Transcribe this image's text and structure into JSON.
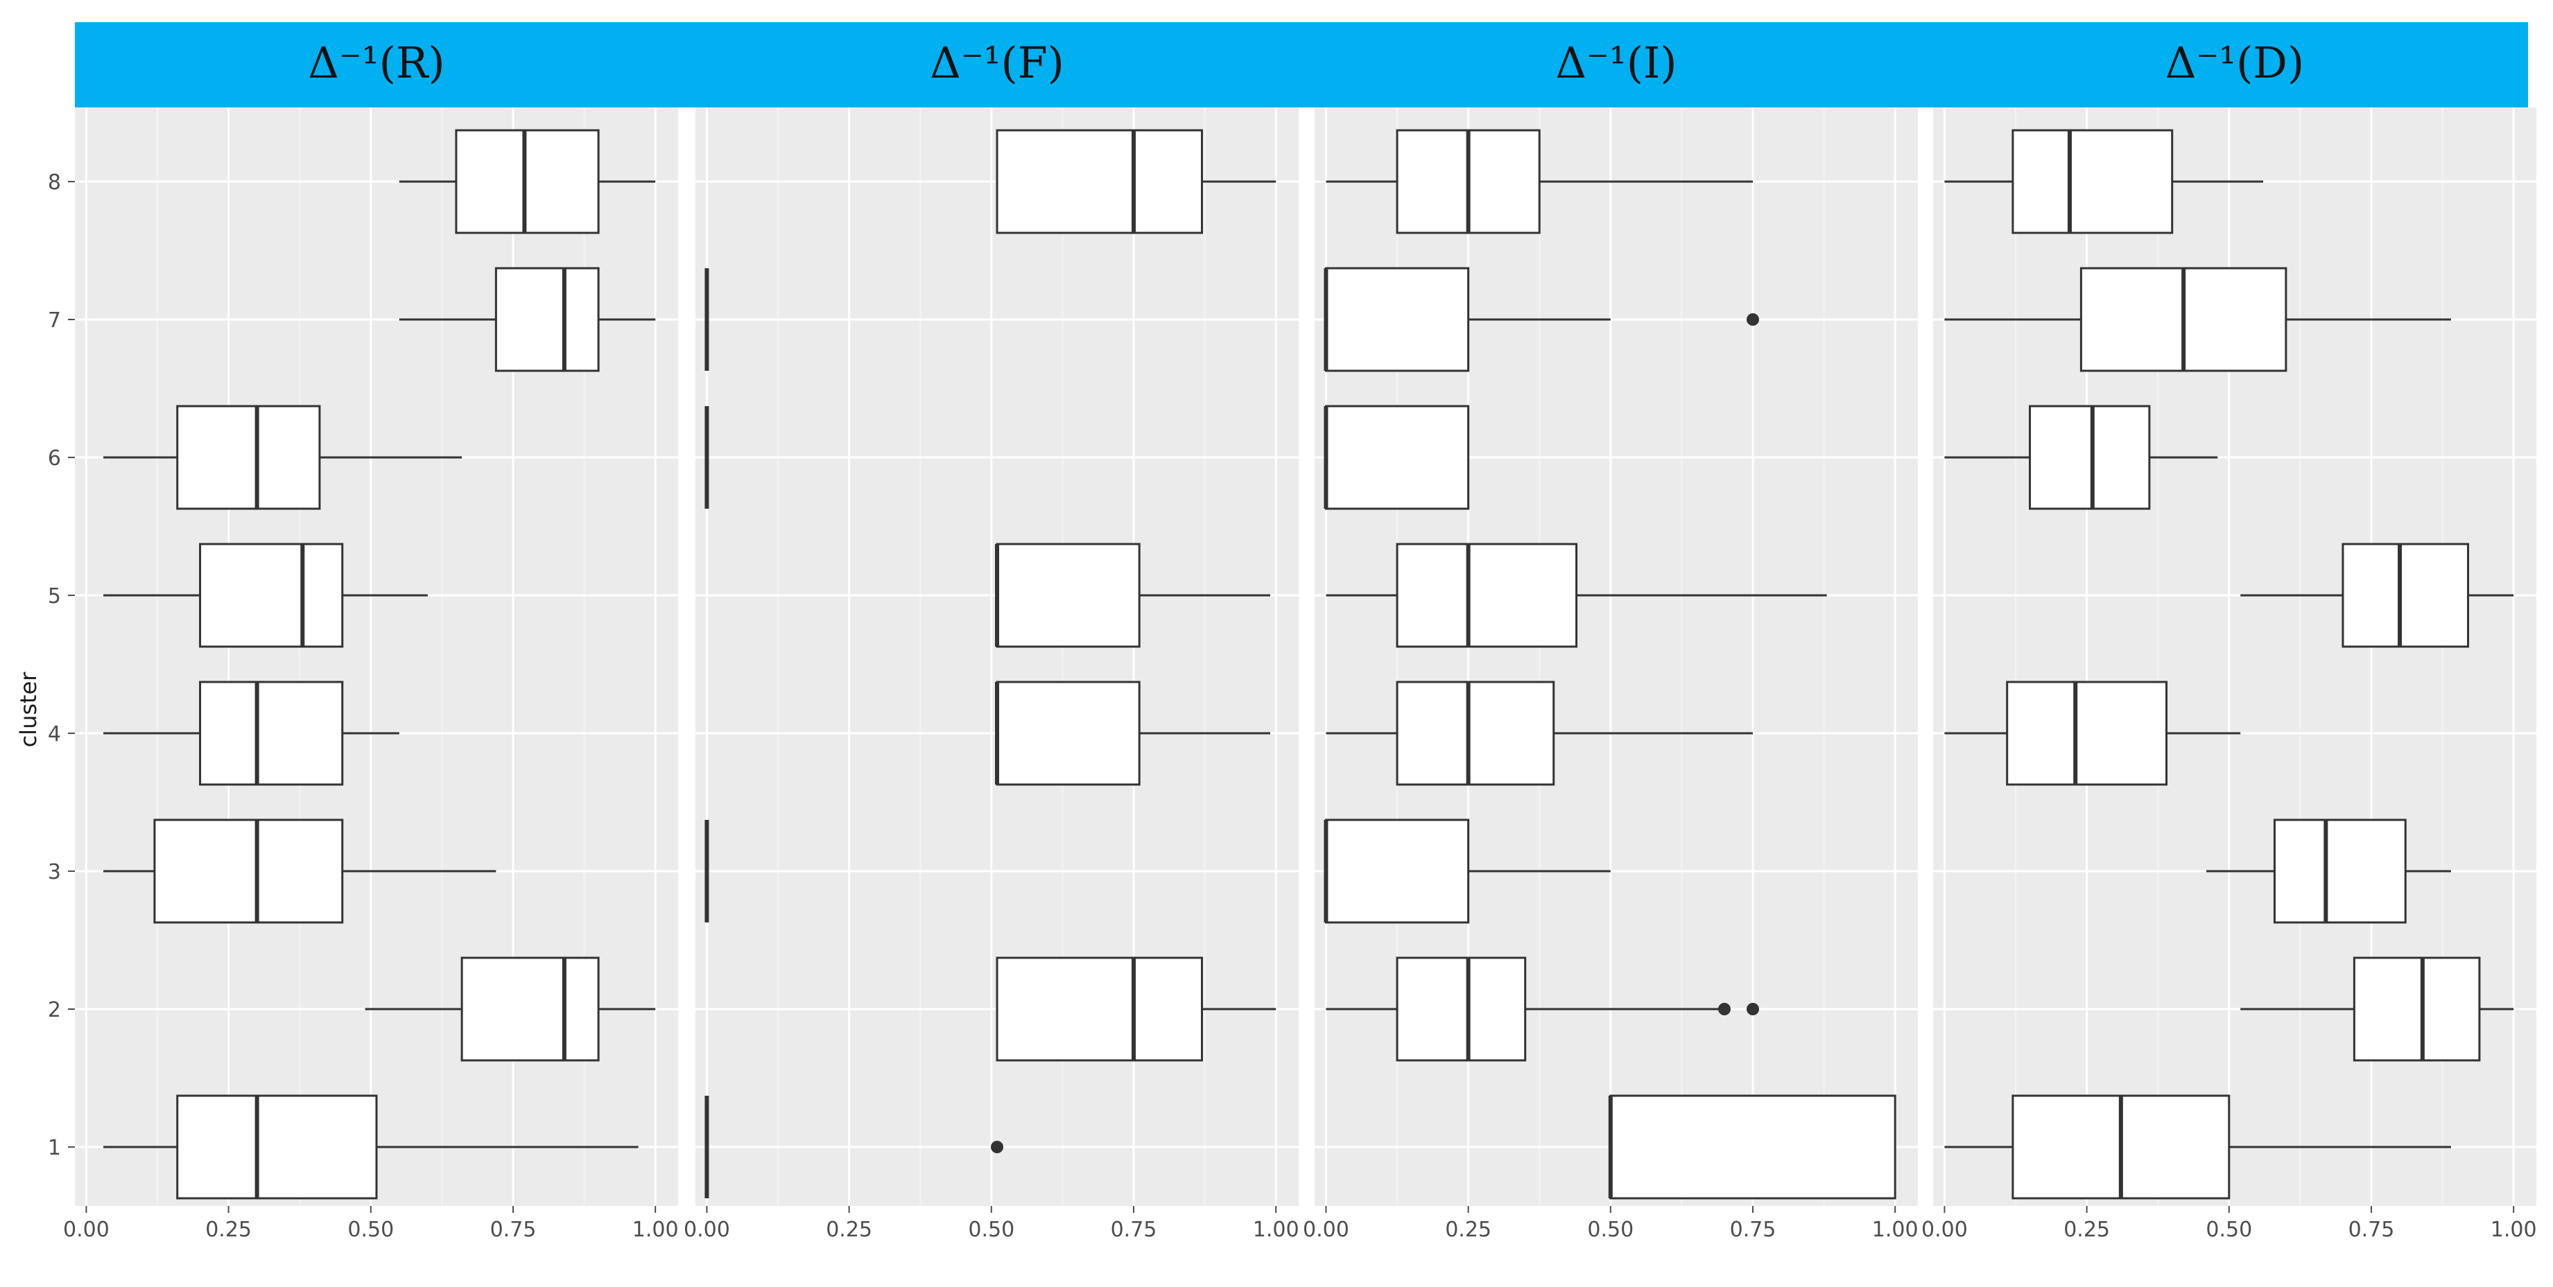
{
  "chart_data": {
    "type": "boxplot",
    "orientation": "horizontal",
    "ylabel": "cluster",
    "xlabel": "",
    "categories": [
      "1",
      "2",
      "3",
      "4",
      "5",
      "6",
      "7",
      "8"
    ],
    "xlim": [
      -0.02,
      1.04
    ],
    "xticks": [
      "0.00",
      "0.25",
      "0.50",
      "0.75",
      "1.00"
    ],
    "strip_color": "#00b0f0",
    "panel_background": "#ebebeb",
    "panels": [
      {
        "title": "Δ⁻¹(R)",
        "boxes": [
          {
            "cluster": "1",
            "min": 0.03,
            "q1": 0.16,
            "median": 0.3,
            "q3": 0.51,
            "max": 0.97,
            "outliers": []
          },
          {
            "cluster": "2",
            "min": 0.49,
            "q1": 0.66,
            "median": 0.84,
            "q3": 0.9,
            "max": 1.0,
            "outliers": []
          },
          {
            "cluster": "3",
            "min": 0.03,
            "q1": 0.12,
            "median": 0.3,
            "q3": 0.45,
            "max": 0.72,
            "outliers": []
          },
          {
            "cluster": "4",
            "min": 0.03,
            "q1": 0.2,
            "median": 0.3,
            "q3": 0.45,
            "max": 0.55,
            "outliers": []
          },
          {
            "cluster": "5",
            "min": 0.03,
            "q1": 0.2,
            "median": 0.38,
            "q3": 0.45,
            "max": 0.6,
            "outliers": []
          },
          {
            "cluster": "6",
            "min": 0.03,
            "q1": 0.16,
            "median": 0.3,
            "q3": 0.41,
            "max": 0.66,
            "outliers": []
          },
          {
            "cluster": "7",
            "min": 0.55,
            "q1": 0.72,
            "median": 0.84,
            "q3": 0.9,
            "max": 1.0,
            "outliers": []
          },
          {
            "cluster": "8",
            "min": 0.55,
            "q1": 0.65,
            "median": 0.77,
            "q3": 0.9,
            "max": 1.0,
            "outliers": []
          }
        ]
      },
      {
        "title": "Δ⁻¹(F)",
        "boxes": [
          {
            "cluster": "1",
            "min": 0.0,
            "q1": 0.0,
            "median": 0.0,
            "q3": 0.0,
            "max": 0.0,
            "outliers": [
              0.51
            ]
          },
          {
            "cluster": "2",
            "min": 0.51,
            "q1": 0.51,
            "median": 0.75,
            "q3": 0.87,
            "max": 1.0,
            "outliers": []
          },
          {
            "cluster": "3",
            "min": 0.0,
            "q1": 0.0,
            "median": 0.0,
            "q3": 0.0,
            "max": 0.0,
            "outliers": []
          },
          {
            "cluster": "4",
            "min": 0.51,
            "q1": 0.51,
            "median": 0.51,
            "q3": 0.76,
            "max": 0.99,
            "outliers": []
          },
          {
            "cluster": "5",
            "min": 0.51,
            "q1": 0.51,
            "median": 0.51,
            "q3": 0.76,
            "max": 0.99,
            "outliers": []
          },
          {
            "cluster": "6",
            "min": 0.0,
            "q1": 0.0,
            "median": 0.0,
            "q3": 0.0,
            "max": 0.0,
            "outliers": []
          },
          {
            "cluster": "7",
            "min": 0.0,
            "q1": 0.0,
            "median": 0.0,
            "q3": 0.0,
            "max": 0.0,
            "outliers": []
          },
          {
            "cluster": "8",
            "min": 0.51,
            "q1": 0.51,
            "median": 0.75,
            "q3": 0.87,
            "max": 1.0,
            "outliers": []
          }
        ]
      },
      {
        "title": "Δ⁻¹(I)",
        "boxes": [
          {
            "cluster": "1",
            "min": 0.5,
            "q1": 0.5,
            "median": 0.5,
            "q3": 1.0,
            "max": 1.0,
            "outliers": []
          },
          {
            "cluster": "2",
            "min": 0.0,
            "q1": 0.125,
            "median": 0.25,
            "q3": 0.35,
            "max": 0.7,
            "outliers": [
              0.7,
              0.75
            ]
          },
          {
            "cluster": "3",
            "min": 0.0,
            "q1": 0.0,
            "median": 0.0,
            "q3": 0.25,
            "max": 0.5,
            "outliers": []
          },
          {
            "cluster": "4",
            "min": 0.0,
            "q1": 0.125,
            "median": 0.25,
            "q3": 0.4,
            "max": 0.75,
            "outliers": []
          },
          {
            "cluster": "5",
            "min": 0.0,
            "q1": 0.125,
            "median": 0.25,
            "q3": 0.44,
            "max": 0.88,
            "outliers": []
          },
          {
            "cluster": "6",
            "min": 0.0,
            "q1": 0.0,
            "median": 0.0,
            "q3": 0.25,
            "max": 0.25,
            "outliers": []
          },
          {
            "cluster": "7",
            "min": 0.0,
            "q1": 0.0,
            "median": 0.0,
            "q3": 0.25,
            "max": 0.5,
            "outliers": [
              0.75
            ]
          },
          {
            "cluster": "8",
            "min": 0.0,
            "q1": 0.125,
            "median": 0.25,
            "q3": 0.375,
            "max": 0.75,
            "outliers": []
          }
        ]
      },
      {
        "title": "Δ⁻¹(D)",
        "boxes": [
          {
            "cluster": "1",
            "min": 0.0,
            "q1": 0.12,
            "median": 0.31,
            "q3": 0.5,
            "max": 0.89,
            "outliers": []
          },
          {
            "cluster": "2",
            "min": 0.52,
            "q1": 0.72,
            "median": 0.84,
            "q3": 0.94,
            "max": 1.0,
            "outliers": []
          },
          {
            "cluster": "3",
            "min": 0.46,
            "q1": 0.58,
            "median": 0.67,
            "q3": 0.81,
            "max": 0.89,
            "outliers": []
          },
          {
            "cluster": "4",
            "min": 0.0,
            "q1": 0.11,
            "median": 0.23,
            "q3": 0.39,
            "max": 0.52,
            "outliers": []
          },
          {
            "cluster": "5",
            "min": 0.52,
            "q1": 0.7,
            "median": 0.8,
            "q3": 0.92,
            "max": 1.0,
            "outliers": []
          },
          {
            "cluster": "6",
            "min": 0.0,
            "q1": 0.15,
            "median": 0.26,
            "q3": 0.36,
            "max": 0.48,
            "outliers": []
          },
          {
            "cluster": "7",
            "min": 0.0,
            "q1": 0.24,
            "median": 0.42,
            "q3": 0.6,
            "max": 0.89,
            "outliers": []
          },
          {
            "cluster": "8",
            "min": 0.0,
            "q1": 0.12,
            "median": 0.22,
            "q3": 0.4,
            "max": 0.56,
            "outliers": []
          }
        ]
      }
    ]
  }
}
